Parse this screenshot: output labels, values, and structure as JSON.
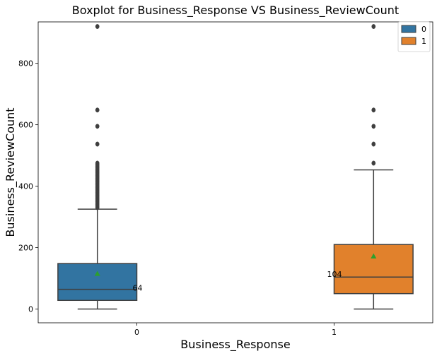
{
  "chart_data": {
    "type": "box",
    "title": "Boxplot for Business_Response VS Business_ReviewCount",
    "xlabel": "Business_Response",
    "ylabel": "Business_ReviewCount",
    "categories": [
      "0",
      "1"
    ],
    "ylim": [
      -45,
      935
    ],
    "yticks": [
      0,
      200,
      400,
      600,
      800
    ],
    "legend": {
      "position": "top-right",
      "entries": [
        "0",
        "1"
      ]
    },
    "colors": {
      "0": "#3274a1",
      "1": "#e1812c",
      "mean_marker": "#2ca02c",
      "line": "#3f3f3f"
    },
    "series": [
      {
        "name": "0",
        "min": 0,
        "q1": 28,
        "median": 64,
        "q3": 148,
        "max": 325,
        "mean": 115,
        "outliers": [
          330,
          335,
          340,
          345,
          350,
          355,
          360,
          365,
          370,
          375,
          380,
          385,
          390,
          395,
          400,
          405,
          410,
          415,
          420,
          425,
          430,
          435,
          440,
          445,
          450,
          455,
          460,
          465,
          470,
          475,
          537,
          595,
          648,
          920
        ]
      },
      {
        "name": "1",
        "min": 0,
        "q1": 50,
        "median": 104,
        "q3": 210,
        "max": 453,
        "mean": 172,
        "outliers": [
          475,
          537,
          595,
          648,
          920
        ]
      }
    ],
    "annotations": [
      {
        "text": "64",
        "group": "0",
        "value": 64
      },
      {
        "text": "104",
        "group": "1",
        "value": 104
      }
    ]
  }
}
